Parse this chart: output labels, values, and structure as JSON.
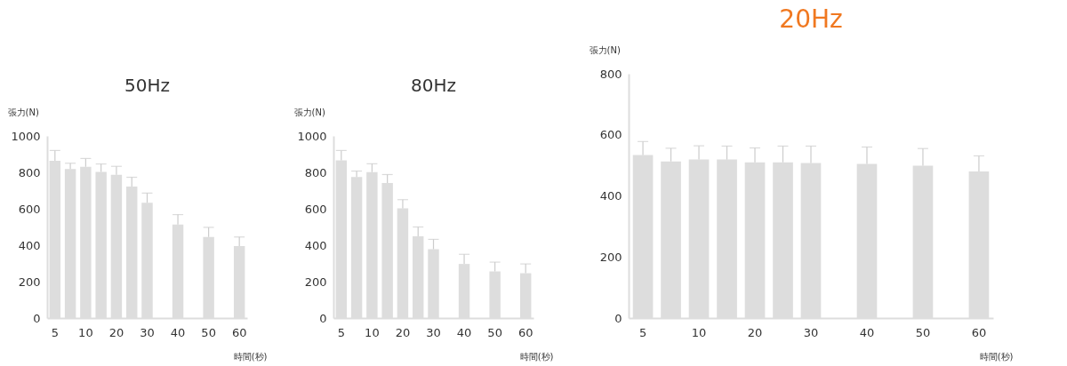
{
  "chart_data": [
    {
      "type": "bar",
      "title": "50Hz",
      "xlabel": "時間(秒)",
      "ylabel": "張力(N)",
      "color": "#dddddd",
      "categories": [
        "5",
        null,
        "10",
        null,
        "20",
        null,
        "30",
        null,
        "40",
        null,
        "50",
        null,
        "60"
      ],
      "values": [
        863,
        818,
        831,
        802,
        786,
        722,
        633,
        null,
        514,
        null,
        445,
        null,
        395
      ],
      "errors": [
        [
          863,
          920
        ],
        [
          818,
          850
        ],
        [
          831,
          876
        ],
        [
          802,
          846
        ],
        [
          786,
          833
        ],
        [
          722,
          773
        ],
        [
          633,
          686
        ],
        null,
        [
          514,
          568
        ],
        null,
        [
          445,
          498
        ],
        null,
        [
          395,
          445
        ]
      ],
      "ylim": [
        0,
        1000
      ],
      "yticks": [
        0,
        200,
        400,
        600,
        800,
        1000
      ],
      "grid": false
    },
    {
      "type": "bar",
      "title": "80Hz",
      "xlabel": "時間(秒)",
      "ylabel": "張力(N)",
      "color": "#dddddd",
      "categories": [
        "5",
        null,
        "10",
        null,
        "20",
        null,
        "30",
        null,
        "40",
        null,
        "50",
        null,
        "60"
      ],
      "values": [
        866,
        775,
        801,
        741,
        603,
        449,
        378,
        null,
        297,
        null,
        256,
        null,
        246
      ],
      "errors": [
        [
          866,
          920
        ],
        [
          775,
          807
        ],
        [
          801,
          847
        ],
        [
          741,
          788
        ],
        [
          603,
          650
        ],
        [
          449,
          500
        ],
        [
          378,
          432
        ],
        null,
        [
          297,
          350
        ],
        null,
        [
          256,
          307
        ],
        null,
        [
          246,
          297
        ]
      ],
      "ylim": [
        0,
        1000
      ],
      "yticks": [
        0,
        200,
        400,
        600,
        800,
        1000
      ],
      "grid": false
    },
    {
      "type": "bar",
      "title": "20Hz",
      "xlabel": "時間(秒)",
      "ylabel": "張力(N)",
      "color": "#dddddd",
      "categories": [
        "5",
        null,
        "10",
        null,
        "20",
        null,
        "30",
        null,
        "40",
        null,
        "50",
        null,
        "60"
      ],
      "values": [
        534,
        513,
        519,
        519,
        510,
        510,
        508,
        null,
        505,
        null,
        499,
        null,
        480
      ],
      "errors": [
        [
          534,
          578
        ],
        [
          513,
          556
        ],
        [
          519,
          564
        ],
        [
          519,
          563
        ],
        [
          510,
          557
        ],
        [
          510,
          563
        ],
        [
          508,
          563
        ],
        null,
        [
          505,
          560
        ],
        null,
        [
          499,
          555
        ],
        null,
        [
          480,
          531
        ]
      ],
      "ylim": [
        0,
        800
      ],
      "yticks": [
        0,
        200,
        400,
        600,
        800
      ],
      "grid": false
    }
  ]
}
